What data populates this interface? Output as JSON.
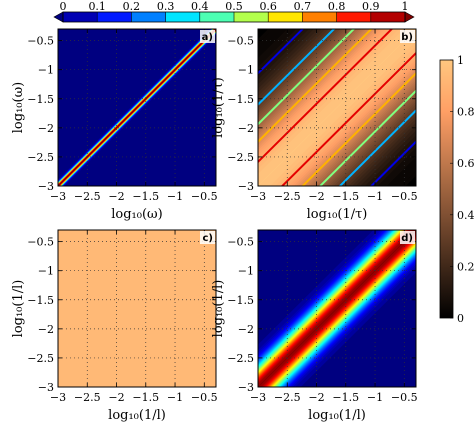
{
  "chart_data": [
    {
      "type": "heatmap",
      "panel_label": "a)",
      "xlabel": "log₁₀(ω)",
      "ylabel": "log₁₀(ω)",
      "xlim": [
        -3,
        -0.3
      ],
      "ylim": [
        -3,
        -0.3
      ],
      "xticks": [
        "−3",
        "−2.5",
        "−2",
        "−1.5",
        "−1",
        "−0.5"
      ],
      "yticks": [
        "−3",
        "−2.5",
        "−2",
        "−1.5",
        "−1",
        "−0.5"
      ],
      "xtick_values": [
        -3,
        -2.5,
        -2,
        -1.5,
        -1,
        -0.5
      ],
      "ytick_values": [
        -3,
        -2.5,
        -2,
        -1.5,
        -1,
        -0.5
      ],
      "colormap": "jet",
      "description": "narrow diagonal ridge of correlation 1, near-zero elsewhere",
      "diagonal_width_decades": 0.04,
      "grid": true
    },
    {
      "type": "heatmap",
      "panel_label": "b)",
      "xlabel": "log₁₀(1/τ)",
      "ylabel": "log₁₀(1/τ)",
      "xlim": [
        -3,
        -0.3
      ],
      "ylim": [
        -3,
        -0.3
      ],
      "xticks": [
        "−3",
        "−2.5",
        "−2",
        "−1.5",
        "−1",
        "−0.5"
      ],
      "yticks": [
        "−3",
        "−2.5",
        "−2",
        "−1.5",
        "−1",
        "−0.5"
      ],
      "xtick_values": [
        -3,
        -2.5,
        -2,
        -1.5,
        -1,
        -0.5
      ],
      "ytick_values": [
        -3,
        -2.5,
        -2,
        -1.5,
        -1,
        -0.5
      ],
      "colormap": "copper",
      "contours": true,
      "contour_levels": [
        0.1,
        0.3,
        0.5,
        0.7,
        0.9
      ],
      "description": "broad diagonal band, correlation decays with distance from diagonal",
      "diagonal_width_decades": 0.9,
      "grid": true
    },
    {
      "type": "heatmap",
      "panel_label": "c)",
      "xlabel": "log₁₀(1/l)",
      "ylabel": "log₁₀(1/l)",
      "xlim": [
        -3,
        -0.3
      ],
      "ylim": [
        -3,
        -0.3
      ],
      "xticks": [
        "−3",
        "−2.5",
        "−2",
        "−1.5",
        "−1",
        "−0.5"
      ],
      "yticks": [
        "−3",
        "−2.5",
        "−2",
        "−1.5",
        "−1",
        "−0.5"
      ],
      "xtick_values": [
        -3,
        -2.5,
        -2,
        -1.5,
        -1,
        -0.5
      ],
      "ytick_values": [
        -3,
        -2.5,
        -2,
        -1.5,
        -1,
        -0.5
      ],
      "colormap": "copper",
      "uniform_value": 0.93,
      "description": "uniform correlation near 1 everywhere",
      "grid": true
    },
    {
      "type": "heatmap",
      "panel_label": "d)",
      "xlabel": "log₁₀(1/l)",
      "ylabel": "log₁₀(1/l)",
      "xlim": [
        -3,
        -0.3
      ],
      "ylim": [
        -3,
        -0.3
      ],
      "xticks": [
        "−3",
        "−2.5",
        "−2",
        "−1.5",
        "−1",
        "−0.5"
      ],
      "yticks": [
        "−3",
        "−2.5",
        "−2",
        "−1.5",
        "−1",
        "−0.5"
      ],
      "xtick_values": [
        -3,
        -2.5,
        -2,
        -1.5,
        -1,
        -0.5
      ],
      "ytick_values": [
        -3,
        -2.5,
        -2,
        -1.5,
        -1,
        -0.5
      ],
      "colormap": "jet",
      "description": "diagonal ridge of correlation 1, moderate width",
      "diagonal_width_decades": 0.26,
      "grid": true
    }
  ],
  "colorbars": {
    "jet": {
      "orientation": "horizontal",
      "placement": "top",
      "colormap": "jet",
      "range": [
        0,
        1
      ],
      "tick_labels": [
        "0",
        "0.1",
        "0.2",
        "0.3",
        "0.4",
        "0.5",
        "0.6",
        "0.7",
        "0.8",
        "0.9",
        "1"
      ],
      "tick_values": [
        0,
        0.1,
        0.2,
        0.3,
        0.4,
        0.5,
        0.6,
        0.7,
        0.8,
        0.9,
        1
      ]
    },
    "copper": {
      "orientation": "vertical",
      "placement": "right",
      "colormap": "copper",
      "range": [
        0,
        1
      ],
      "tick_labels": [
        "0",
        "0.2",
        "0.4",
        "0.6",
        "0.8",
        "1"
      ],
      "tick_values": [
        0,
        0.2,
        0.4,
        0.6,
        0.8,
        1
      ]
    }
  }
}
